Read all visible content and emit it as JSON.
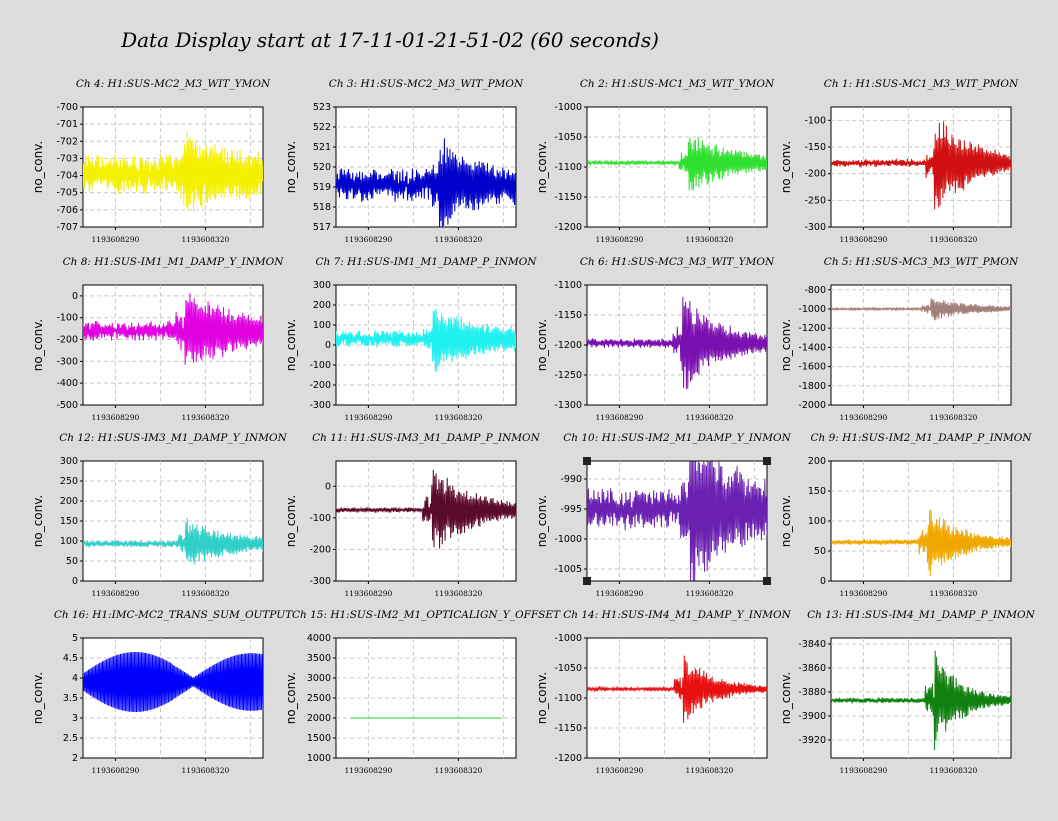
{
  "page_title": "Data Display start at 17-11-01-21-51-02 (60 seconds)",
  "colors": {
    "background": "#dcdcdc",
    "plot_area": "#ffffff",
    "grid": "#c8c8c8"
  },
  "chart_data": [
    {
      "type": "line",
      "title": "Ch 4: H1:SUS-MC2_M3_WIT_YMON",
      "ylabel": "no_conv.",
      "ylim": [
        -707,
        -700
      ],
      "yticks": [
        -707,
        -706,
        -705,
        -704,
        -703,
        -702,
        -701,
        -700
      ],
      "xticks": [
        "1193608290",
        "1193608320"
      ],
      "color": "#f4f000",
      "baseline": -703.9,
      "noise": 0.75,
      "burst_amp": 1.8,
      "decay": 0.45,
      "style": "noisy",
      "selected": false
    },
    {
      "type": "line",
      "title": "Ch 8: H1:SUS-IM1_M1_DAMP_Y_INMON",
      "ylabel": "no_conv.",
      "ylim": [
        -500,
        50
      ],
      "yticks": [
        -500,
        -400,
        -300,
        -200,
        -100,
        0
      ],
      "xticks": [
        "1193608290",
        "1193608320"
      ],
      "color": "#e000e0",
      "baseline": -160,
      "noise": 30,
      "burst_amp": 160,
      "decay": 0.55,
      "style": "decay",
      "selected": false
    },
    {
      "type": "line",
      "title": "Ch 12: H1:SUS-IM3_M1_DAMP_Y_INMON",
      "ylabel": "no_conv.",
      "ylim": [
        0,
        300
      ],
      "yticks": [
        0,
        50,
        100,
        150,
        200,
        250,
        300
      ],
      "xticks": [
        "1193608290",
        "1193608320"
      ],
      "color": "#30d0c8",
      "baseline": 93,
      "noise": 6,
      "burst_amp": 60,
      "decay": 0.45,
      "style": "decay",
      "selected": false
    },
    {
      "type": "line",
      "title": "Ch 16: H1:IMC-MC2_TRANS_SUM_OUTPUT",
      "ylabel": "no_conv.",
      "ylim": [
        2,
        5
      ],
      "yticks": [
        2,
        2.5,
        3,
        3.5,
        4,
        4.5,
        5
      ],
      "xticks": [
        "1193608290",
        "1193608320"
      ],
      "color": "#0000ff",
      "baseline": 3.9,
      "noise": 0,
      "burst_amp": 0,
      "decay": 0,
      "style": "envelope",
      "selected": false
    },
    {
      "type": "line",
      "title": "Ch 3: H1:SUS-MC2_M3_WIT_PMON",
      "ylabel": "no_conv.",
      "ylim": [
        517,
        523
      ],
      "yticks": [
        517,
        518,
        519,
        520,
        521,
        522,
        523
      ],
      "xticks": [
        "1193608290",
        "1193608320"
      ],
      "color": "#0000cc",
      "baseline": 519.1,
      "noise": 0.55,
      "burst_amp": 1.9,
      "decay": 0.25,
      "style": "noisy",
      "selected": false
    },
    {
      "type": "line",
      "title": "Ch 7: H1:SUS-IM1_M1_DAMP_P_INMON",
      "ylabel": "no_conv.",
      "ylim": [
        -300,
        300
      ],
      "yticks": [
        -300,
        -200,
        -100,
        0,
        100,
        200,
        300
      ],
      "xticks": [
        "1193608290",
        "1193608320"
      ],
      "color": "#20f0f0",
      "baseline": 30,
      "noise": 28,
      "burst_amp": 140,
      "decay": 0.5,
      "style": "decay",
      "selected": false
    },
    {
      "type": "line",
      "title": "Ch 11: H1:SUS-IM3_M1_DAMP_P_INMON",
      "ylabel": "no_conv.",
      "ylim": [
        -300,
        80
      ],
      "yticks": [
        -300,
        -200,
        -100,
        0
      ],
      "xticks": [
        "1193608290",
        "1193608320"
      ],
      "color": "#5a0a2a",
      "baseline": -75,
      "noise": 5,
      "burst_amp": 140,
      "decay": 0.45,
      "style": "decay",
      "selected": false
    },
    {
      "type": "line",
      "title": "Ch 15: H1:SUS-IM2_M1_OPTICALIGN_Y_OFFSET",
      "ylabel": "no_conv.",
      "ylim": [
        1000,
        4000
      ],
      "yticks": [
        1000,
        1500,
        2000,
        2500,
        3000,
        3500,
        4000
      ],
      "xticks": [
        "1193608290",
        "1193608320"
      ],
      "color": "#20d020",
      "baseline": 2000,
      "noise": 0,
      "burst_amp": 0,
      "decay": 0,
      "style": "flat",
      "selected": false
    },
    {
      "type": "line",
      "title": "Ch 2: H1:SUS-MC1_M3_WIT_YMON",
      "ylabel": "no_conv.",
      "ylim": [
        -1200,
        -1000
      ],
      "yticks": [
        -1200,
        -1150,
        -1100,
        -1050,
        -1000
      ],
      "xticks": [
        "1193608290",
        "1193608320"
      ],
      "color": "#30e030",
      "baseline": -1093,
      "noise": 2,
      "burst_amp": 50,
      "decay": 0.55,
      "style": "decay",
      "selected": false
    },
    {
      "type": "line",
      "title": "Ch 6: H1:SUS-MC3_M3_WIT_YMON",
      "ylabel": "no_conv.",
      "ylim": [
        -1300,
        -1100
      ],
      "yticks": [
        -1300,
        -1250,
        -1200,
        -1150,
        -1100
      ],
      "xticks": [
        "1193608290",
        "1193608320"
      ],
      "color": "#7a10b0",
      "baseline": -1197,
      "noise": 5,
      "burst_amp": 85,
      "decay": 0.35,
      "style": "decay",
      "selected": false
    },
    {
      "type": "line",
      "title": "Ch 10: H1:SUS-IM2_M1_DAMP_Y_INMON",
      "ylabel": "no_conv.",
      "ylim": [
        -1007,
        -987
      ],
      "yticks": [
        -1005,
        -1000,
        -995,
        -990
      ],
      "xticks": [
        "1193608290",
        "1193608320"
      ],
      "color": "#6a20b0",
      "baseline": -995,
      "noise": 2.2,
      "burst_amp": 14,
      "decay": 0.35,
      "style": "decay",
      "selected": true
    },
    {
      "type": "line",
      "title": "Ch 14: H1:SUS-IM4_M1_DAMP_Y_INMON",
      "ylabel": "no_conv.",
      "ylim": [
        -1200,
        -1000
      ],
      "yticks": [
        -1200,
        -1150,
        -1100,
        -1050,
        -1000
      ],
      "xticks": [
        "1193608290",
        "1193608320"
      ],
      "color": "#e81010",
      "baseline": -1085,
      "noise": 2,
      "burst_amp": 60,
      "decay": 0.25,
      "style": "decay",
      "selected": false
    },
    {
      "type": "line",
      "title": "Ch 1: H1:SUS-MC1_M3_WIT_PMON",
      "ylabel": "no_conv.",
      "ylim": [
        -300,
        -75
      ],
      "yticks": [
        -300,
        -250,
        -200,
        -150,
        -100
      ],
      "xticks": [
        "1193608290",
        "1193608320"
      ],
      "color": "#d01010",
      "baseline": -180,
      "noise": 5,
      "burst_amp": 95,
      "decay": 0.35,
      "style": "decay",
      "selected": false
    },
    {
      "type": "line",
      "title": "Ch 5: H1:SUS-MC3_M3_WIT_PMON",
      "ylabel": "no_conv.",
      "ylim": [
        -2000,
        -750
      ],
      "yticks": [
        -2000,
        -1800,
        -1600,
        -1400,
        -1200,
        -1000,
        -800
      ],
      "xticks": [
        "1193608290",
        "1193608320"
      ],
      "color": "#a08078",
      "baseline": -1000,
      "noise": 8,
      "burst_amp": 120,
      "decay": 0.4,
      "style": "decay",
      "selected": false
    },
    {
      "type": "line",
      "title": "Ch 9: H1:SUS-IM2_M1_DAMP_P_INMON",
      "ylabel": "no_conv.",
      "ylim": [
        0,
        200
      ],
      "yticks": [
        0,
        50,
        100,
        150,
        200
      ],
      "xticks": [
        "1193608290",
        "1193608320"
      ],
      "color": "#f0a800",
      "baseline": 65,
      "noise": 3,
      "burst_amp": 60,
      "decay": 0.3,
      "style": "decay",
      "selected": false
    },
    {
      "type": "line",
      "title": "Ch 13: H1:SUS-IM4_M1_DAMP_P_INMON",
      "ylabel": "no_conv.",
      "ylim": [
        -3935,
        -3835
      ],
      "yticks": [
        -3920,
        -3900,
        -3880,
        -3860,
        -3840
      ],
      "xticks": [
        "1193608290",
        "1193608320"
      ],
      "color": "#108010",
      "baseline": -3887,
      "noise": 1.5,
      "burst_amp": 42,
      "decay": 0.2,
      "style": "decay",
      "selected": false
    }
  ]
}
